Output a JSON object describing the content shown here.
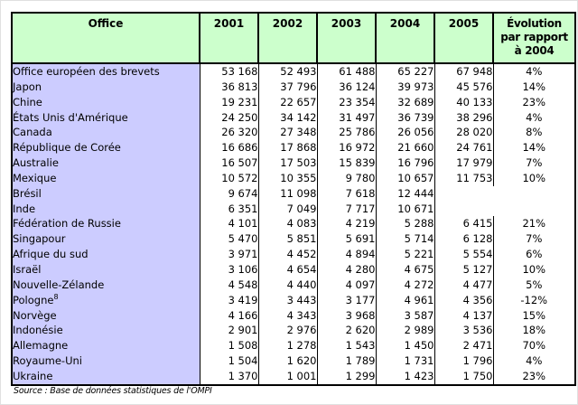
{
  "colors": {
    "header_bg": "#ccffcc",
    "office_column_bg": "#ccccff",
    "border": "#000000",
    "page_bg": "#ffffff"
  },
  "table": {
    "office_header": "Office",
    "year_headers": [
      "2001",
      "2002",
      "2003",
      "2004",
      "2005"
    ],
    "evolution_header": [
      "Évolution",
      "par rapport",
      "à 2004"
    ],
    "rows": [
      {
        "office": "Office européen des brevets",
        "values": [
          "53 168",
          "52 493",
          "61 488",
          "65 227",
          "67 948"
        ],
        "evolution": "4%"
      },
      {
        "office": "Japon",
        "values": [
          "36 813",
          "37 796",
          "36 124",
          "39 973",
          "45 576"
        ],
        "evolution": "14%"
      },
      {
        "office": "Chine",
        "values": [
          "19 231",
          "22 657",
          "23 354",
          "32 689",
          "40 133"
        ],
        "evolution": "23%"
      },
      {
        "office": "États Unis d'Amérique",
        "values": [
          "24 250",
          "34 142",
          "31 497",
          "36 739",
          "38 296"
        ],
        "evolution": "4%"
      },
      {
        "office": "Canada",
        "values": [
          "26 320",
          "27 348",
          "25 786",
          "26 056",
          "28 020"
        ],
        "evolution": "8%"
      },
      {
        "office": "République de Corée",
        "values": [
          "16 686",
          "17 868",
          "16 972",
          "21 660",
          "24 761"
        ],
        "evolution": "14%"
      },
      {
        "office": "Australie",
        "values": [
          "16 507",
          "17 503",
          "15 839",
          "16 796",
          "17 979"
        ],
        "evolution": "7%"
      },
      {
        "office": "Mexique",
        "values": [
          "10 572",
          "10 355",
          "9 780",
          "10 657",
          "11 753"
        ],
        "evolution": "10%"
      },
      {
        "office": "Brésil",
        "values": [
          "9 674",
          "11 098",
          "7 618",
          "12 444"
        ],
        "blank_2005_evolution": true
      },
      {
        "office": "Inde",
        "values": [
          "6 351",
          "7 049",
          "7 717",
          "10 671"
        ],
        "blank_2005_evolution": true
      },
      {
        "office": "Fédération de Russie",
        "values": [
          "4 101",
          "4 083",
          "4 219",
          "5 288",
          "6 415"
        ],
        "evolution": "21%"
      },
      {
        "office": "Singapour",
        "values": [
          "5 470",
          "5 851",
          "5 691",
          "5 714",
          "6 128"
        ],
        "evolution": "7%"
      },
      {
        "office": "Afrique du sud",
        "values": [
          "3 971",
          "4 452",
          "4 894",
          "5 221",
          "5 554"
        ],
        "evolution": "6%"
      },
      {
        "office": "Israël",
        "values": [
          "3 106",
          "4 654",
          "4 280",
          "4 675",
          "5 127"
        ],
        "evolution": "10%"
      },
      {
        "office": "Nouvelle-Zélande",
        "values": [
          "4 548",
          "4 440",
          "4 097",
          "4 272",
          "4 477"
        ],
        "evolution": "5%"
      },
      {
        "office": "Pologne",
        "sup": "8",
        "values": [
          "3 419",
          "3 443",
          "3 177",
          "4 961",
          "4 356"
        ],
        "evolution": "-12%"
      },
      {
        "office": "Norvège",
        "values": [
          "4 166",
          "4 343",
          "3 968",
          "3 587",
          "4 137"
        ],
        "evolution": "15%"
      },
      {
        "office": "Indonésie",
        "values": [
          "2 901",
          "2 976",
          "2 620",
          "2 989",
          "3 536"
        ],
        "evolution": "18%"
      },
      {
        "office": "Allemagne",
        "values": [
          "1 508",
          "1 278",
          "1 543",
          "1 450",
          "2 471"
        ],
        "evolution": "70%"
      },
      {
        "office": "Royaume-Uni",
        "values": [
          "1 504",
          "1 620",
          "1 789",
          "1 731",
          "1 796"
        ],
        "evolution": "4%"
      },
      {
        "office": "Ukraine",
        "values": [
          "1 370",
          "1 001",
          "1 299",
          "1 423",
          "1 750"
        ],
        "evolution": "23%"
      }
    ]
  },
  "source_note": "Source : Base de données statistiques de l'OMPI"
}
